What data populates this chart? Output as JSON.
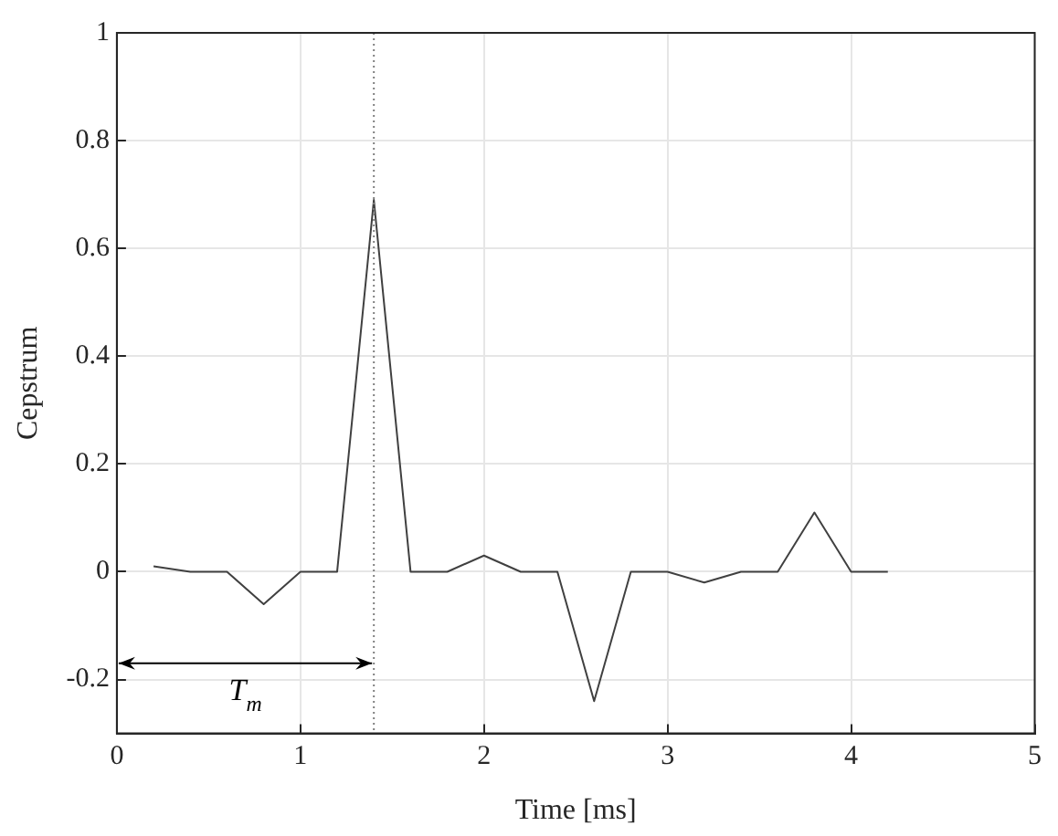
{
  "chart_data": {
    "type": "line",
    "xlabel": "Time [ms]",
    "ylabel": "Cepstrum",
    "x": [
      0.2,
      0.4,
      0.6,
      0.8,
      1.0,
      1.2,
      1.4,
      1.6,
      1.8,
      2.0,
      2.2,
      2.4,
      2.6,
      2.8,
      3.0,
      3.2,
      3.4,
      3.6,
      3.8,
      4.0,
      4.2
    ],
    "series": [
      {
        "color": "#404040",
        "values": [
          0.01,
          0,
          0,
          -0.06,
          0,
          0,
          0.69,
          0,
          0,
          0.03,
          0,
          0,
          -0.24,
          0,
          0,
          -0.02,
          0,
          0,
          0.11,
          0,
          0
        ]
      }
    ],
    "xlim": [
      0,
      5
    ],
    "xticks": [
      0,
      1,
      2,
      3,
      4,
      5
    ],
    "ylim": [
      -0.3,
      1
    ],
    "yticks": [
      -0.2,
      0,
      0.2,
      0.4,
      0.6,
      0.8,
      1
    ],
    "ref_lines": [
      {
        "axis": "x",
        "value": 1.4,
        "color": "#808080",
        "line_style": "dotted"
      }
    ],
    "annotations": [
      "T$_{m}$"
    ],
    "grid": true,
    "legend": false,
    "marker": "none",
    "line_style": "solid"
  }
}
